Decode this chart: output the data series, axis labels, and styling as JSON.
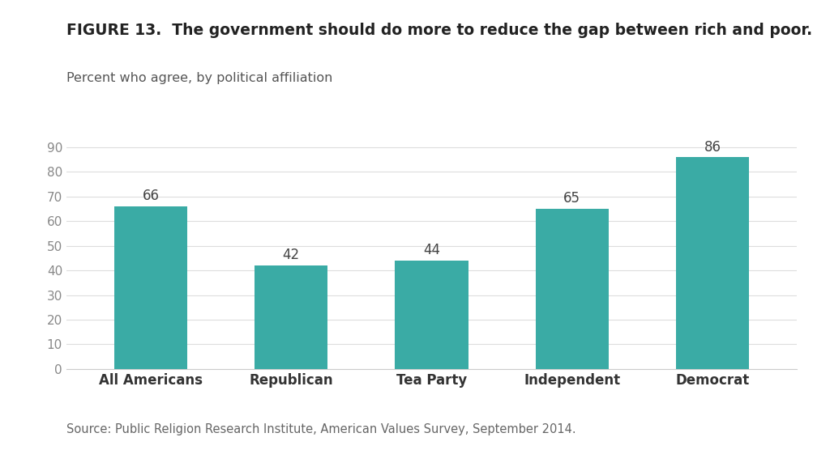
{
  "title_bold": "FIGURE 13.  The government should do more to reduce the gap between rich and poor.",
  "subtitle": "Percent who agree, by political affiliation",
  "source": "Source: Public Religion Research Institute, American Values Survey, September 2014.",
  "categories": [
    "All Americans",
    "Republican",
    "Tea Party",
    "Independent",
    "Democrat"
  ],
  "values": [
    66,
    42,
    44,
    65,
    86
  ],
  "bar_color": "#3aaba5",
  "ylim": [
    0,
    95
  ],
  "yticks": [
    0,
    10,
    20,
    30,
    40,
    50,
    60,
    70,
    80,
    90
  ],
  "background_color": "#ffffff",
  "title_fontsize": 13.5,
  "subtitle_fontsize": 11.5,
  "tick_fontsize": 11,
  "source_fontsize": 10.5,
  "value_label_fontsize": 12,
  "xlabel_fontsize": 12,
  "bar_width": 0.52
}
